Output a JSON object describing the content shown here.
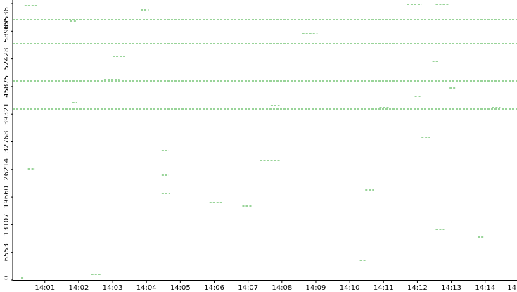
{
  "chart_data": {
    "type": "scatter",
    "color": "#33a833",
    "x": [
      0.05,
      0.05,
      0.05,
      0.05,
      0.4,
      3.83,
      8.6,
      3.0,
      2.75,
      12.44,
      4.45,
      4.45,
      4.45,
      10.3,
      12.54,
      13.78,
      10.46,
      12.12,
      14.2,
      0.5,
      11.7,
      12.54,
      5.86,
      6.83,
      1.75,
      7.67,
      10.88,
      7.35,
      12.95,
      11.92,
      1.81,
      2.37,
      0.3
    ],
    "x_end": [
      14.94,
      14.94,
      14.94,
      14.94,
      0.8,
      4.07,
      9.05,
      3.37,
      3.2,
      12.64,
      4.66,
      4.66,
      4.7,
      10.5,
      12.79,
      13.99,
      10.71,
      12.37,
      14.45,
      0.71,
      12.12,
      12.95,
      6.27,
      7.1,
      1.96,
      7.93,
      11.19,
      7.97,
      13.16,
      12.12,
      1.96,
      2.68,
      0.4
    ],
    "values": [
      61700,
      56030,
      47190,
      40520,
      65040,
      64040,
      58370,
      53030,
      47530,
      51860,
      30680,
      24850,
      20510,
      4670,
      12010,
      10170,
      21340,
      33850,
      40860,
      26350,
      65370,
      65370,
      18340,
      17510,
      61370,
      41360,
      40860,
      28350,
      45530,
      43520,
      42020,
      1330,
      500
    ],
    "xlim": [
      0.05,
      14.94
    ],
    "xticks": [
      {
        "value": 1,
        "label": "14:01"
      },
      {
        "value": 2,
        "label": "14:02"
      },
      {
        "value": 3,
        "label": "14:03"
      },
      {
        "value": 4,
        "label": "14:04"
      },
      {
        "value": 5,
        "label": "14:05"
      },
      {
        "value": 6,
        "label": "14:06"
      },
      {
        "value": 7,
        "label": "14:07"
      },
      {
        "value": 8,
        "label": "14:08"
      },
      {
        "value": 9,
        "label": "14:09"
      },
      {
        "value": 10,
        "label": "14:10"
      },
      {
        "value": 11,
        "label": "14:11"
      },
      {
        "value": 12,
        "label": "14:12"
      },
      {
        "value": 13,
        "label": "14:13"
      },
      {
        "value": 14,
        "label": "14:14"
      },
      {
        "value": 15,
        "label": "14"
      }
    ],
    "ylim": [
      0,
      65536
    ],
    "yticks": [
      0,
      6553,
      13107,
      19660,
      26214,
      32768,
      39321,
      45875,
      52428,
      58982,
      65536
    ]
  }
}
